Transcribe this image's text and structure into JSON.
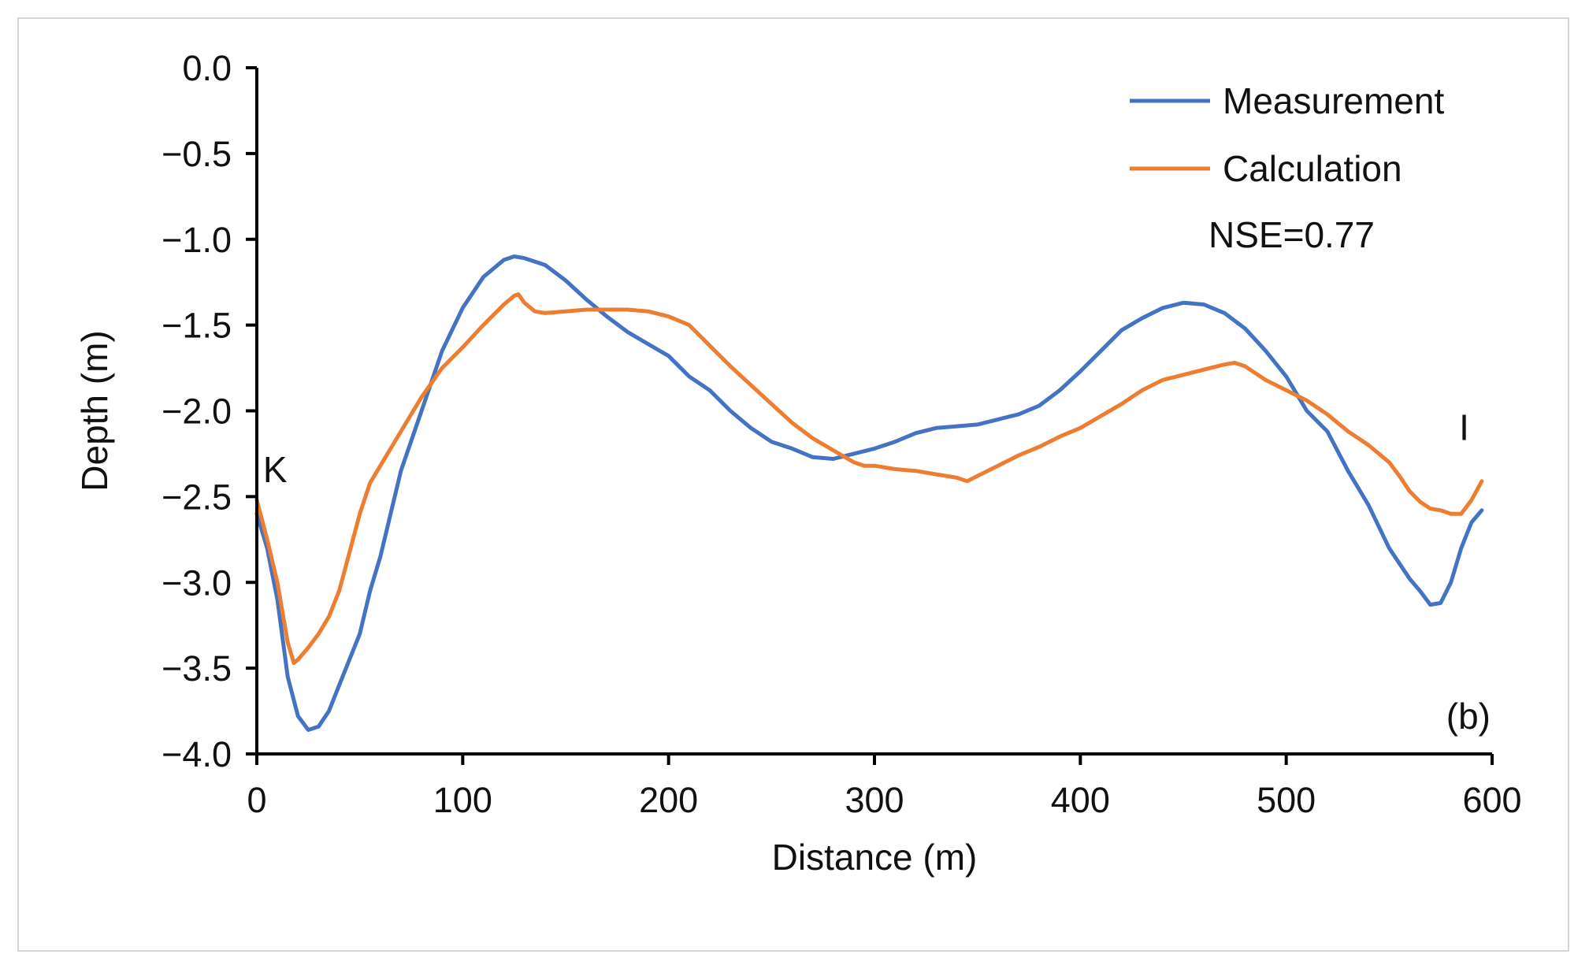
{
  "chart_data": {
    "type": "line",
    "xlabel": "Distance (m)",
    "ylabel": "Depth (m)",
    "xlim": [
      0,
      600
    ],
    "ylim": [
      -4.0,
      0.0
    ],
    "xticks": [
      0,
      100,
      200,
      300,
      400,
      500,
      600
    ],
    "yticks": [
      0.0,
      -0.5,
      -1.0,
      -1.5,
      -2.0,
      -2.5,
      -3.0,
      -3.5,
      -4.0
    ],
    "ytick_labels": [
      "0.0",
      "−0.5",
      "−1.0",
      "−1.5",
      "−2.0",
      "−2.5",
      "−3.0",
      "−3.5",
      "−4.0"
    ],
    "xtick_labels": [
      "0",
      "100",
      "200",
      "300",
      "400",
      "500",
      "600"
    ],
    "grid": false,
    "legend_position": "top-right",
    "series": [
      {
        "name": "Measurement",
        "color": "#4472C4",
        "x": [
          0,
          5,
          10,
          15,
          20,
          25,
          30,
          35,
          40,
          45,
          50,
          55,
          60,
          70,
          80,
          90,
          100,
          110,
          120,
          125,
          130,
          140,
          150,
          160,
          170,
          180,
          190,
          200,
          210,
          220,
          230,
          240,
          250,
          260,
          270,
          280,
          290,
          300,
          310,
          320,
          330,
          340,
          350,
          360,
          370,
          380,
          390,
          400,
          410,
          420,
          430,
          440,
          450,
          460,
          470,
          480,
          490,
          500,
          510,
          520,
          530,
          540,
          550,
          560,
          565,
          570,
          575,
          580,
          585,
          590,
          595
        ],
        "values": [
          -2.6,
          -2.8,
          -3.1,
          -3.55,
          -3.78,
          -3.86,
          -3.84,
          -3.75,
          -3.6,
          -3.45,
          -3.3,
          -3.05,
          -2.85,
          -2.35,
          -2.0,
          -1.65,
          -1.4,
          -1.22,
          -1.12,
          -1.1,
          -1.11,
          -1.15,
          -1.24,
          -1.35,
          -1.45,
          -1.54,
          -1.61,
          -1.68,
          -1.8,
          -1.88,
          -2.0,
          -2.1,
          -2.18,
          -2.22,
          -2.27,
          -2.28,
          -2.25,
          -2.22,
          -2.18,
          -2.13,
          -2.1,
          -2.09,
          -2.08,
          -2.05,
          -2.02,
          -1.97,
          -1.88,
          -1.77,
          -1.65,
          -1.53,
          -1.46,
          -1.4,
          -1.37,
          -1.38,
          -1.43,
          -1.52,
          -1.65,
          -1.8,
          -2.0,
          -2.12,
          -2.35,
          -2.55,
          -2.8,
          -2.98,
          -3.05,
          -3.13,
          -3.12,
          -3.0,
          -2.8,
          -2.65,
          -2.58
        ]
      },
      {
        "name": "Calculation",
        "color": "#ED7D31",
        "x": [
          0,
          5,
          10,
          15,
          18,
          20,
          25,
          30,
          35,
          40,
          50,
          55,
          60,
          70,
          80,
          90,
          100,
          110,
          120,
          125,
          127,
          130,
          135,
          140,
          150,
          160,
          170,
          180,
          190,
          200,
          210,
          220,
          230,
          240,
          250,
          260,
          270,
          280,
          290,
          295,
          300,
          310,
          320,
          330,
          340,
          345,
          350,
          360,
          370,
          380,
          390,
          400,
          410,
          420,
          430,
          440,
          450,
          460,
          470,
          475,
          480,
          490,
          500,
          510,
          520,
          530,
          540,
          550,
          555,
          560,
          565,
          570,
          575,
          580,
          585,
          590,
          595
        ],
        "values": [
          -2.52,
          -2.75,
          -3.0,
          -3.35,
          -3.47,
          -3.45,
          -3.38,
          -3.3,
          -3.2,
          -3.05,
          -2.6,
          -2.42,
          -2.32,
          -2.12,
          -1.92,
          -1.75,
          -1.63,
          -1.5,
          -1.38,
          -1.33,
          -1.32,
          -1.37,
          -1.42,
          -1.43,
          -1.42,
          -1.41,
          -1.41,
          -1.41,
          -1.42,
          -1.45,
          -1.5,
          -1.62,
          -1.74,
          -1.85,
          -1.96,
          -2.07,
          -2.16,
          -2.23,
          -2.3,
          -2.32,
          -2.32,
          -2.34,
          -2.35,
          -2.37,
          -2.39,
          -2.41,
          -2.38,
          -2.32,
          -2.26,
          -2.21,
          -2.15,
          -2.1,
          -2.03,
          -1.96,
          -1.88,
          -1.82,
          -1.79,
          -1.76,
          -1.73,
          -1.72,
          -1.74,
          -1.82,
          -1.88,
          -1.94,
          -2.02,
          -2.12,
          -2.2,
          -2.3,
          -2.38,
          -2.47,
          -2.53,
          -2.57,
          -2.58,
          -2.6,
          -2.6,
          -2.52,
          -2.41
        ]
      }
    ],
    "annotations": {
      "nse": "NSE=0.77",
      "start_label": "K",
      "end_label": "I",
      "panel_label": "(b)"
    }
  }
}
